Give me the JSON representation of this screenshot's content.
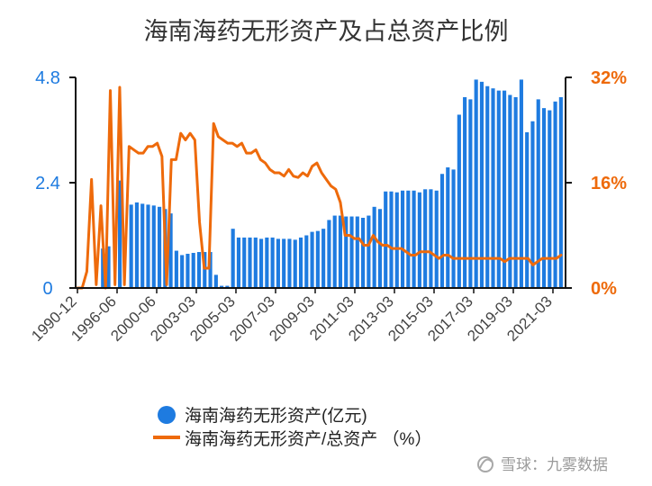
{
  "chart_data": {
    "type": "bar",
    "title": "海南海药无形资产及占总资产比例",
    "left_axis": {
      "ticks": [
        "0",
        "2.4",
        "4.8"
      ],
      "ylim": [
        0,
        4.8
      ],
      "color": "#1e7be0"
    },
    "right_axis": {
      "ticks": [
        "0%",
        "16%",
        "32%"
      ],
      "ylim": [
        0,
        32
      ],
      "color": "#ee6a0b"
    },
    "x_tick_labels": [
      "1990-12",
      "1996-06",
      "2000-06",
      "2003-03",
      "2005-03",
      "2007-03",
      "2009-03",
      "2011-03",
      "2013-03",
      "2015-03",
      "2017-03",
      "2019-03",
      "2021-03"
    ],
    "series": [
      {
        "name": "海南海药无形资产(亿元)",
        "kind": "bar",
        "axis": "left",
        "color": "#1e7be0",
        "values": [
          0,
          0,
          0,
          0,
          0.9,
          0.95,
          0,
          2.45,
          0,
          1.9,
          1.95,
          1.92,
          1.9,
          1.88,
          1.85,
          1.8,
          1.7,
          0.85,
          0.75,
          0.78,
          0.8,
          0.82,
          0.82,
          0.82,
          0.3,
          0.05,
          0.05,
          1.35,
          1.15,
          1.15,
          1.15,
          1.15,
          1.12,
          1.15,
          1.15,
          1.12,
          1.12,
          1.12,
          1.1,
          1.15,
          1.2,
          1.28,
          1.3,
          1.35,
          1.55,
          1.65,
          1.65,
          1.63,
          1.63,
          1.63,
          1.6,
          1.65,
          1.85,
          1.8,
          2.2,
          2.2,
          2.18,
          2.22,
          2.22,
          2.22,
          2.18,
          2.25,
          2.25,
          2.22,
          2.6,
          2.75,
          2.7,
          3.95,
          4.35,
          4.3,
          4.75,
          4.7,
          4.6,
          4.55,
          4.5,
          4.5,
          4.4,
          4.35,
          4.75,
          3.55,
          3.8,
          4.3,
          4.1,
          4.05,
          4.25,
          4.35
        ]
      },
      {
        "name": "海南海药无形资产/总资产 （%）",
        "kind": "line",
        "axis": "right",
        "color": "#ee6a0b",
        "values": [
          0,
          0,
          2.5,
          16.5,
          0.5,
          12.5,
          0,
          30,
          0.5,
          30.5,
          0.5,
          21.5,
          21,
          20.5,
          20.5,
          21.5,
          21.5,
          22,
          20,
          0.5,
          19.5,
          19.5,
          23.5,
          22.5,
          23.5,
          22.5,
          10,
          3,
          3,
          25,
          23,
          22.5,
          22,
          22,
          21.5,
          22,
          20.5,
          20.5,
          21,
          19.5,
          19,
          18,
          17.5,
          17.5,
          17,
          18,
          17,
          16.8,
          17.5,
          17,
          18.5,
          19,
          17.5,
          16.5,
          15.5,
          15,
          13,
          8,
          8,
          7.5,
          7.5,
          6.5,
          6.5,
          8,
          7,
          6.5,
          6.5,
          6,
          6,
          6,
          5.5,
          5,
          5,
          5.5,
          5.5,
          5.5,
          5,
          4.5,
          5,
          5,
          4.5,
          4.5,
          4.5,
          4.5,
          4.5,
          4.5,
          4.5,
          4.5,
          4.5,
          4.5,
          4.5,
          4,
          4.5,
          4.5,
          4.5,
          4.5,
          4.5,
          3.5,
          4,
          4.5,
          4.5,
          4.5,
          4.5,
          5
        ]
      }
    ],
    "legend": {
      "placement": "bottom-center"
    },
    "grid": false
  },
  "watermark": {
    "text": "雪球：九雾数据"
  }
}
